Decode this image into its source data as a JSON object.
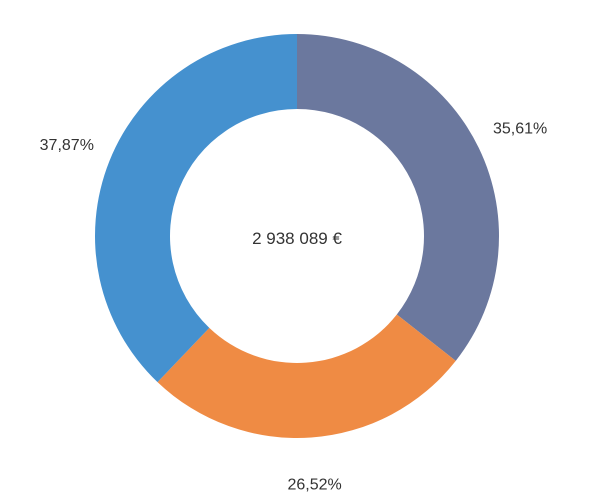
{
  "chart_data": {
    "type": "pie",
    "variant": "donut",
    "center_label": "2 938 089 €",
    "slices": [
      {
        "value": 35.61,
        "label": "35,61%",
        "color": "#6b789e"
      },
      {
        "value": 26.52,
        "label": "26,52%",
        "color": "#ef8b44"
      },
      {
        "value": 37.87,
        "label": "37,87%",
        "color": "#4591cf"
      }
    ],
    "start_angle": "12 o'clock",
    "direction": "clockwise",
    "legend": "none"
  }
}
